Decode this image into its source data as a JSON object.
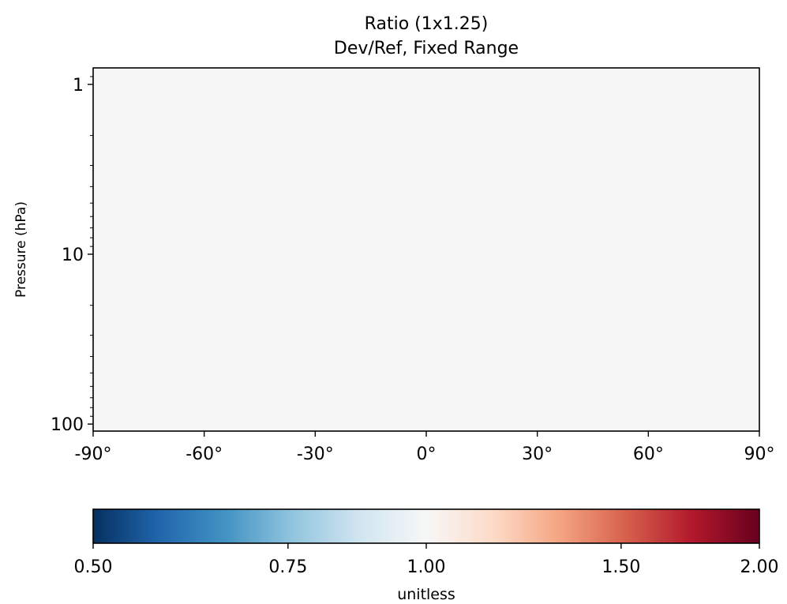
{
  "chart_data": {
    "type": "heatmap",
    "title": "Ratio (1x1.25)",
    "subtitle": "Dev/Ref, Fixed Range",
    "xlabel": "",
    "ylabel": "Pressure (hPa)",
    "x_range": [
      -90,
      90
    ],
    "x_ticks": [
      -90,
      -60,
      -30,
      0,
      30,
      60,
      90
    ],
    "x_tick_labels": [
      "-90°",
      "-60°",
      "-30°",
      "0°",
      "30°",
      "60°",
      "90°"
    ],
    "y_scale": "log",
    "y_range": [
      110,
      0.8
    ],
    "y_ticks": [
      1,
      10,
      100
    ],
    "y_tick_labels": [
      "1",
      "10",
      "100"
    ],
    "field_value": 1.0,
    "field_color": "#f5f6f5",
    "colorbar": {
      "label": "unitless",
      "ticks": [
        0.5,
        0.75,
        1.0,
        1.5,
        2.0
      ],
      "tick_labels": [
        "0.50",
        "0.75",
        "1.00",
        "1.50",
        "2.00"
      ],
      "colormap": "RdBu_r",
      "colors": [
        "#053061",
        "#2166ac",
        "#4393c3",
        "#92c5de",
        "#d1e5f0",
        "#f7f7f7",
        "#fddbc7",
        "#f4a582",
        "#d6604d",
        "#b2182b",
        "#67001f"
      ]
    }
  }
}
